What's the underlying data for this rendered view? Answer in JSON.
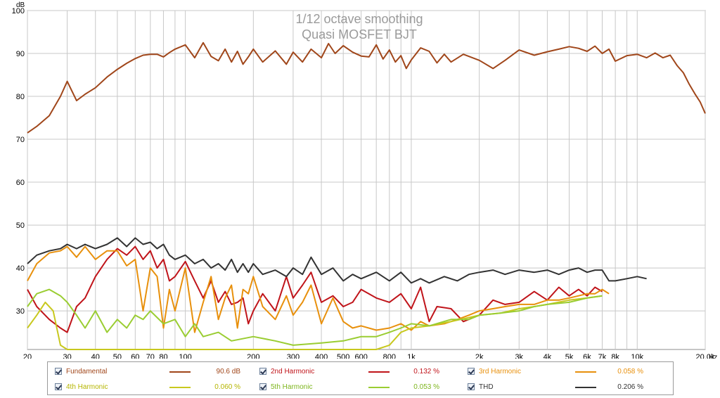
{
  "chart_data": {
    "type": "line",
    "title": "1/12 octave smoothing",
    "subtitle": "Quasi MOSFET BJT",
    "ylabel": "dB",
    "xunit": "Hz",
    "xscale": "log",
    "xlim": [
      20,
      20000
    ],
    "ylim": [
      21,
      100
    ],
    "yticks": [
      "30",
      "40",
      "50",
      "60",
      "70",
      "80",
      "90",
      "100"
    ],
    "xticks": [
      "20",
      "30",
      "40",
      "50",
      "60",
      "70",
      "80",
      "100",
      "200",
      "300",
      "400",
      "500",
      "600",
      "800",
      "1k",
      "2k",
      "3k",
      "4k",
      "5k",
      "6k",
      "7k",
      "8k",
      "10k",
      "20.0k"
    ],
    "grid": true,
    "legend_position": "bottom",
    "series": [
      {
        "name": "Fundamental",
        "value": "90.6 dB",
        "color": "#a0461a",
        "x": [
          20,
          22,
          25,
          28,
          30,
          33,
          36,
          40,
          45,
          50,
          55,
          60,
          65,
          70,
          75,
          80,
          85,
          90,
          100,
          110,
          120,
          130,
          140,
          150,
          160,
          170,
          180,
          190,
          200,
          220,
          250,
          280,
          300,
          330,
          360,
          400,
          430,
          460,
          500,
          550,
          600,
          650,
          700,
          750,
          800,
          850,
          900,
          950,
          1000,
          1100,
          1200,
          1300,
          1400,
          1500,
          1700,
          2000,
          2300,
          2600,
          3000,
          3500,
          4000,
          4500,
          5000,
          5500,
          6000,
          6500,
          7000,
          7500,
          8000,
          9000,
          10000,
          11000,
          12000,
          13000,
          14000,
          15000,
          16000,
          17000,
          18000,
          19000,
          20000
        ],
        "y": [
          71.5,
          73,
          75.5,
          80,
          83.5,
          79,
          80.5,
          82,
          84.5,
          86.3,
          87.7,
          88.8,
          89.6,
          89.8,
          89.8,
          89.2,
          90.2,
          91,
          92,
          89,
          92.5,
          89.3,
          88.3,
          91,
          88,
          90.5,
          87.5,
          89.2,
          91,
          88,
          90.6,
          87.5,
          90.3,
          88,
          91,
          89,
          92.3,
          90,
          91.8,
          90.3,
          89.4,
          89.2,
          92,
          88.7,
          90.8,
          88,
          89.5,
          86.5,
          88.5,
          91.3,
          90.5,
          87.8,
          89.8,
          88,
          89.8,
          88.4,
          86.5,
          88.4,
          90.8,
          89.6,
          90.4,
          91,
          91.6,
          91.2,
          90.5,
          91.7,
          90,
          91,
          88.2,
          89.5,
          89.8,
          89,
          90.1,
          89,
          89.6,
          87.2,
          85.5,
          82.8,
          80.6,
          78.7,
          76
        ]
      },
      {
        "name": "2nd Harmonic",
        "value": "0.132 %",
        "color": "#c0141a",
        "x": [
          20,
          22,
          25,
          28,
          30,
          33,
          36,
          40,
          45,
          50,
          55,
          60,
          65,
          70,
          75,
          80,
          85,
          90,
          100,
          110,
          120,
          130,
          140,
          150,
          160,
          170,
          180,
          190,
          200,
          220,
          250,
          280,
          300,
          330,
          360,
          400,
          450,
          500,
          550,
          600,
          700,
          800,
          900,
          1000,
          1100,
          1200,
          1300,
          1500,
          1700,
          2000,
          2300,
          2600,
          3000,
          3500,
          4000,
          4500,
          5000,
          5500,
          6000,
          6500,
          7000
        ],
        "y": [
          35,
          31,
          28,
          26,
          25,
          31,
          33,
          38,
          42,
          44.5,
          43,
          45,
          42,
          44,
          40,
          42,
          37,
          38,
          41.5,
          37,
          33,
          37,
          32,
          34.5,
          31.5,
          32,
          33,
          27,
          30,
          34,
          30,
          38,
          33,
          36,
          39,
          32,
          33.5,
          31,
          32,
          35,
          33,
          32,
          34,
          30.5,
          35.5,
          27.5,
          31,
          30.5,
          27.5,
          29,
          32.5,
          31.5,
          32,
          34.5,
          32.5,
          35.5,
          33.5,
          35,
          33.5,
          35.5,
          34.5
        ]
      },
      {
        "name": "3rd Harmonic",
        "value": "0.058 %",
        "color": "#e8900c",
        "x": [
          20,
          22,
          25,
          28,
          30,
          33,
          36,
          40,
          45,
          50,
          55,
          60,
          65,
          70,
          75,
          80,
          85,
          90,
          100,
          110,
          120,
          130,
          140,
          150,
          160,
          170,
          180,
          190,
          200,
          220,
          250,
          280,
          300,
          330,
          360,
          400,
          450,
          500,
          550,
          600,
          700,
          800,
          900,
          1000,
          1100,
          1200,
          1400,
          1600,
          1800,
          2000,
          2300,
          2600,
          3000,
          3500,
          4000,
          4500,
          5000,
          5500,
          6000,
          6500,
          7000,
          7500
        ],
        "y": [
          37,
          41,
          43.5,
          44,
          45,
          42.5,
          45,
          42,
          44,
          44,
          40.5,
          42,
          30,
          40,
          38,
          26,
          35,
          30,
          40,
          25,
          32,
          38,
          28,
          33,
          36,
          26,
          35,
          34,
          38,
          31,
          28,
          33.5,
          29,
          32,
          36,
          27,
          33,
          27.5,
          26,
          26.5,
          25.5,
          26,
          27,
          25.5,
          27.5,
          26.5,
          27,
          28,
          29,
          30,
          30.5,
          31,
          31.5,
          31.5,
          32.5,
          32.5,
          33,
          33.5,
          34,
          34,
          35,
          34
        ]
      },
      {
        "name": "4th Harmonic",
        "value": "0.060 %",
        "color": "#c8c81e",
        "x": [
          20,
          22,
          24,
          26,
          28,
          30,
          33,
          36,
          40,
          45,
          50,
          55,
          60,
          70,
          80,
          90,
          100,
          120,
          140,
          160,
          200,
          250,
          300,
          400,
          500,
          600,
          700,
          800,
          900,
          1000,
          1200,
          1500,
          2000,
          2500,
          3000,
          3500,
          4000,
          5000,
          6000,
          7000
        ],
        "y": [
          26,
          29,
          32,
          30,
          22,
          21,
          21,
          21,
          21,
          21,
          21,
          21,
          21,
          21,
          21,
          21,
          21,
          21,
          21,
          21,
          21,
          21,
          21,
          21,
          21,
          21,
          21,
          22,
          25,
          26,
          26.5,
          27.5,
          29,
          29.5,
          30.5,
          31,
          31.5,
          32.5,
          33,
          33.5
        ]
      },
      {
        "name": "5th Harmonic",
        "value": "0.053 %",
        "color": "#9acd32",
        "x": [
          20,
          22,
          25,
          28,
          30,
          33,
          36,
          40,
          45,
          50,
          55,
          60,
          65,
          70,
          80,
          90,
          100,
          110,
          120,
          140,
          160,
          200,
          250,
          300,
          400,
          500,
          600,
          700,
          800,
          900,
          1000,
          1200,
          1500,
          1800,
          2000,
          2500,
          3000,
          3500,
          4000,
          5000,
          6000,
          7000
        ],
        "y": [
          31,
          34,
          35,
          33.5,
          32,
          29,
          26,
          30,
          25,
          28,
          26,
          29,
          28,
          30,
          27,
          28,
          24,
          27,
          24,
          25,
          23,
          24,
          23,
          22,
          22.5,
          23,
          24,
          24,
          25,
          26,
          27,
          26.5,
          28,
          28,
          29,
          29.5,
          30,
          31,
          31.5,
          32,
          33,
          33.5
        ]
      },
      {
        "name": "THD",
        "value": "0.206 %",
        "color": "#333333",
        "x": [
          20,
          22,
          25,
          28,
          30,
          33,
          36,
          40,
          45,
          50,
          55,
          60,
          65,
          70,
          75,
          80,
          85,
          90,
          100,
          110,
          120,
          130,
          140,
          150,
          160,
          170,
          180,
          190,
          200,
          220,
          250,
          280,
          300,
          330,
          360,
          400,
          450,
          500,
          550,
          600,
          700,
          800,
          900,
          1000,
          1100,
          1200,
          1400,
          1600,
          1800,
          2000,
          2300,
          2600,
          3000,
          3500,
          4000,
          4500,
          5000,
          5500,
          6000,
          6500,
          7000,
          7500,
          8000,
          9000,
          10000,
          11000
        ],
        "y": [
          41,
          43,
          44,
          44.5,
          45.5,
          44.5,
          45.5,
          44.5,
          45.5,
          47,
          45,
          47,
          45.5,
          46,
          44.5,
          45.5,
          43,
          42,
          43,
          41,
          42,
          40,
          41,
          39.5,
          42,
          39,
          41,
          39,
          41,
          38.5,
          39.5,
          38,
          40,
          38.5,
          42.5,
          38.5,
          40,
          37,
          38.5,
          37.5,
          39,
          37,
          39,
          36.5,
          37.5,
          36.5,
          38,
          37,
          38.5,
          39,
          39.5,
          38.5,
          39.5,
          39,
          39.5,
          38.5,
          39.5,
          40,
          39,
          39.5,
          39.5,
          37,
          37,
          37.5,
          38,
          37.5
        ]
      }
    ]
  }
}
